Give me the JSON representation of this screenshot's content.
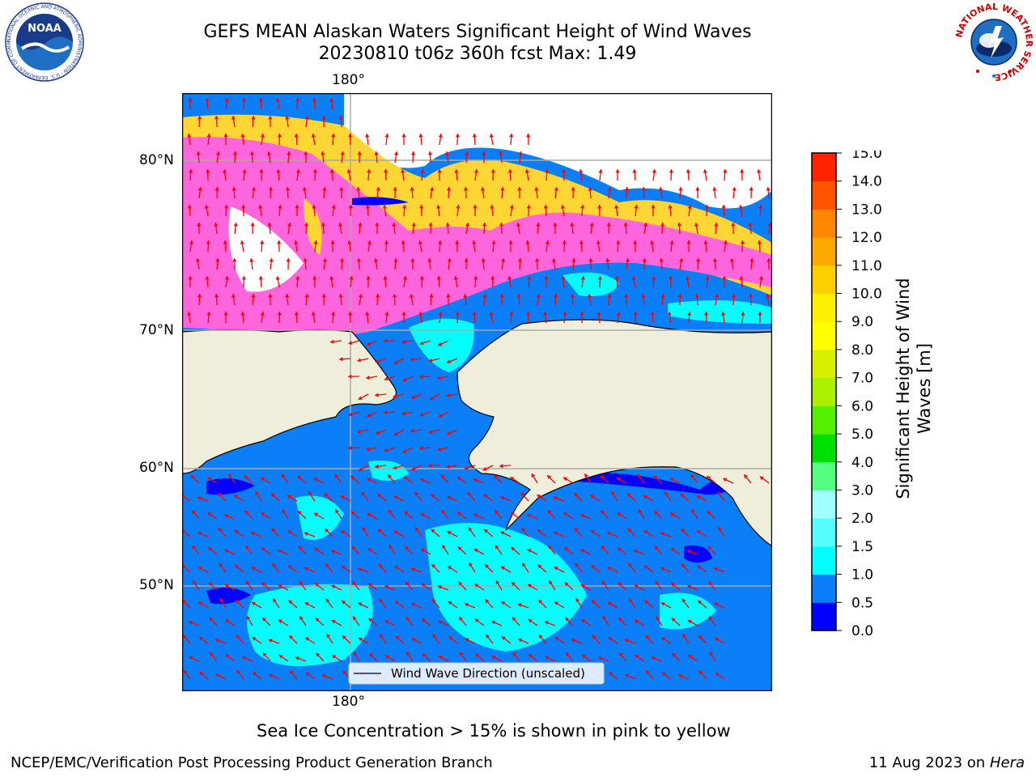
{
  "header": {
    "title_line1": "GEFS MEAN Alaskan Waters Significant Height of Wind Waves",
    "title_line2": "20230810 t06z 360h fcst   Max: 1.49"
  },
  "logos": {
    "left": "NOAA",
    "left_ring": "NATIONAL OCEANIC AND ATMOSPHERIC ADMINISTRATION · U.S. DEPARTMENT OF COMMERCE",
    "right_ring": "NATIONAL WEATHER SERVICE"
  },
  "map": {
    "lon_label_top": "180°",
    "lon_label_bottom": "180°",
    "lat_labels": [
      "80°N",
      "70°N",
      "60°N",
      "50°N"
    ],
    "legend_label": "Wind Wave Direction (unscaled)",
    "colors": {
      "land": "#efeedb",
      "ocean_low": "#0a7ff7",
      "ocean_mid": "#00ffff",
      "ice_pink": "#ff66dd",
      "ice_yellow": "#ffd633",
      "arrow": "#ff0000"
    }
  },
  "colorbar": {
    "label": "Significant Height of Wind Waves [m]",
    "ticks": [
      "0.0",
      "0.5",
      "1.0",
      "1.5",
      "2.0",
      "3.0",
      "4.0",
      "5.0",
      "6.0",
      "7.0",
      "8.0",
      "9.0",
      "10.0",
      "11.0",
      "12.0",
      "13.0",
      "14.0",
      "15.0"
    ],
    "colors": [
      "#0000ff",
      "#0a7ff7",
      "#00ffff",
      "#55ffff",
      "#a0ffff",
      "#55ff80",
      "#00e000",
      "#55f000",
      "#aaf000",
      "#d8f000",
      "#ffff00",
      "#fff000",
      "#ffd000",
      "#ffaa00",
      "#ff8800",
      "#ff5500",
      "#ff2200"
    ]
  },
  "footer": {
    "ice_note": "Sea Ice Concentration > 15% is shown in pink to yellow",
    "branch": "NCEP/EMC/Verification Post Processing Product Generation Branch",
    "date": "11 Aug 2023 on",
    "host": "Hera"
  }
}
